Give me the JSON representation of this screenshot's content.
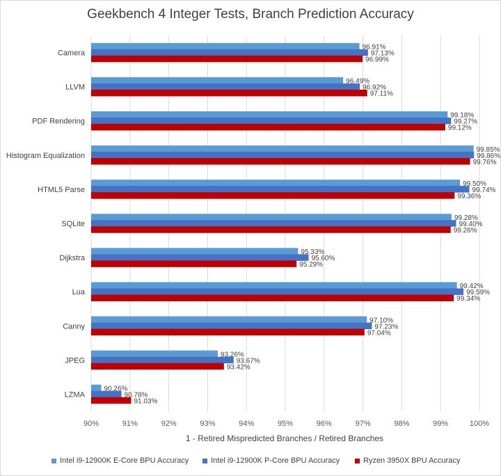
{
  "chart_data": {
    "type": "bar",
    "orientation": "horizontal",
    "title": "Geekbench 4 Integer Tests, Branch Prediction Accuracy",
    "xlabel": "1 - Retired Mispredicted Branches / Retired Branches",
    "ylabel": "",
    "categories": [
      "Camera",
      "LLVM",
      "PDF Rendering",
      "Histogram Equalization",
      "HTML5 Parse",
      "SQLite",
      "Dijkstra",
      "Lua",
      "Canny",
      "JPEG",
      "LZMA"
    ],
    "series": [
      {
        "name": "Intel i9-12900K E-Core BPU Accuracy",
        "color": "#5b9bd5",
        "values": [
          96.91,
          96.49,
          99.18,
          99.85,
          99.5,
          99.28,
          95.33,
          99.42,
          97.1,
          93.26,
          90.26
        ],
        "labels": [
          "96.91%",
          "96.49%",
          "99.18%",
          "99.85%",
          "99.50%",
          "99.28%",
          "95.33%",
          "99.42%",
          "97.10%",
          "93.26%",
          "90.26%"
        ]
      },
      {
        "name": "Intel i9-12900K P-Core BPU Accuracy",
        "color": "#4472c4",
        "values": [
          97.13,
          96.92,
          99.27,
          99.86,
          99.74,
          99.4,
          95.6,
          99.59,
          97.23,
          93.67,
          90.78
        ],
        "labels": [
          "97.13%",
          "96.92%",
          "99.27%",
          "99.86%",
          "99.74%",
          "99.40%",
          "95.60%",
          "99.59%",
          "97.23%",
          "93.67%",
          "90.78%"
        ]
      },
      {
        "name": "Ryzen 3950X BPU Accuracy",
        "color": "#c00000",
        "values": [
          96.99,
          97.11,
          99.12,
          99.76,
          99.36,
          99.26,
          95.29,
          99.34,
          97.04,
          93.42,
          91.03
        ],
        "labels": [
          "96.99%",
          "97.11%",
          "99.12%",
          "99.76%",
          "99.36%",
          "99.26%",
          "95.29%",
          "99.34%",
          "97.04%",
          "93.42%",
          "91.03%"
        ]
      }
    ],
    "xlim": [
      90,
      100
    ],
    "xticks": [
      90,
      91,
      92,
      93,
      94,
      95,
      96,
      97,
      98,
      99,
      100
    ],
    "xtick_labels": [
      "90%",
      "91%",
      "92%",
      "93%",
      "94%",
      "95%",
      "96%",
      "97%",
      "98%",
      "99%",
      "100%"
    ],
    "grid": "vertical",
    "legend_position": "bottom"
  }
}
